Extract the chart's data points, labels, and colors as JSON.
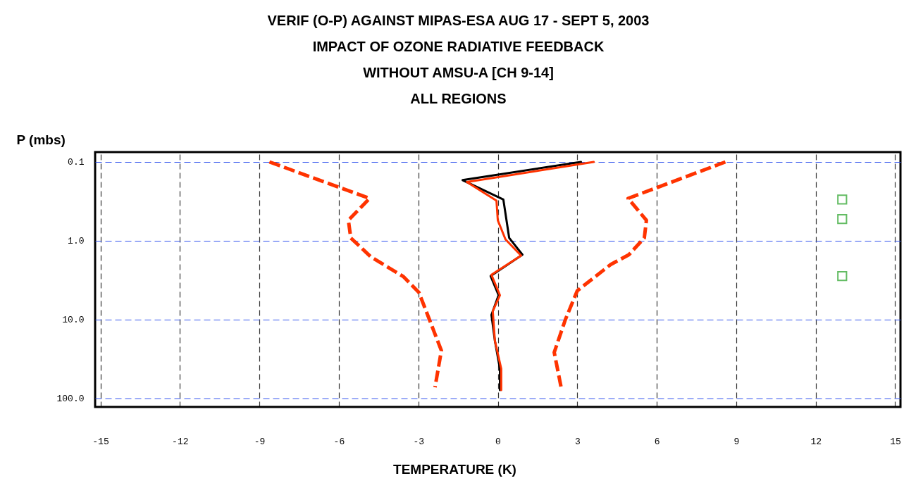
{
  "chart_data": {
    "type": "line",
    "title": "VERIF (O-P) AGAINST MIPAS-ESA AUG 17 - SEPT 5, 2003\nIMPACT OF OZONE RADIATIVE FEEDBACK\nWITHOUT AMSU-A [CH 9-14]\nALL REGIONS",
    "xlabel": "TEMPERATURE (K)",
    "ylabel": "P (mbs)",
    "log": "y",
    "grid": true,
    "xlim": [
      -15.2,
      15.2
    ],
    "xticks": [
      -15,
      -12,
      -9,
      -6,
      -3,
      0,
      3,
      6,
      9,
      12,
      15
    ],
    "ylim": [
      128,
      0.075
    ],
    "yticks": [
      {
        "value": 0.1,
        "label": "0.1"
      },
      {
        "value": 1,
        "label": "1.0"
      },
      {
        "value": 10,
        "label": "10.0"
      },
      {
        "value": 100,
        "label": "100.0"
      }
    ],
    "series": [
      {
        "color": "#000000",
        "line_style": "solid",
        "x": [
          3.14,
          -1.33,
          0.21,
          0.43,
          0.93,
          -0.27,
          0.03,
          -0.24,
          -0.11,
          0.08,
          0.08
        ],
        "values": [
          0.1,
          0.17,
          0.3,
          0.92,
          1.5,
          2.8,
          4.9,
          8.7,
          18.5,
          42,
          78
        ]
      },
      {
        "color": "#ff3300",
        "line_style": "solid",
        "x": [
          3.62,
          -1.17,
          -0.05,
          0,
          0.29,
          0.88,
          -0.24,
          0.08,
          -0.19,
          -0.11,
          0.13,
          0.13
        ],
        "values": [
          0.1,
          0.18,
          0.31,
          0.55,
          0.96,
          1.54,
          2.7,
          4.9,
          7.8,
          18.5,
          42,
          78
        ]
      },
      {
        "color": "#ff3300",
        "line_style": "dashed",
        "x": [
          -8.62,
          -4.84,
          -5.64,
          -5.55,
          -4.79,
          -3.56,
          -2.98,
          -2.58,
          -2.13,
          -2.37
        ],
        "values": [
          0.1,
          0.29,
          0.55,
          0.92,
          1.6,
          2.85,
          4.5,
          10,
          24.7,
          72
        ]
      },
      {
        "color": "#ff3300",
        "line_style": "dashed",
        "x": [
          8.59,
          4.92,
          5.61,
          5.53,
          4.95,
          4.26,
          3.0,
          2.55,
          2.13,
          2.39
        ],
        "values": [
          0.1,
          0.29,
          0.55,
          0.92,
          1.5,
          2.0,
          4.3,
          10,
          26,
          72
        ]
      },
      {
        "type": "scatter",
        "marker": "square",
        "color": "#22a022",
        "x": [
          13,
          13,
          13
        ],
        "values": [
          0.3,
          0.53,
          2.8
        ]
      }
    ]
  }
}
